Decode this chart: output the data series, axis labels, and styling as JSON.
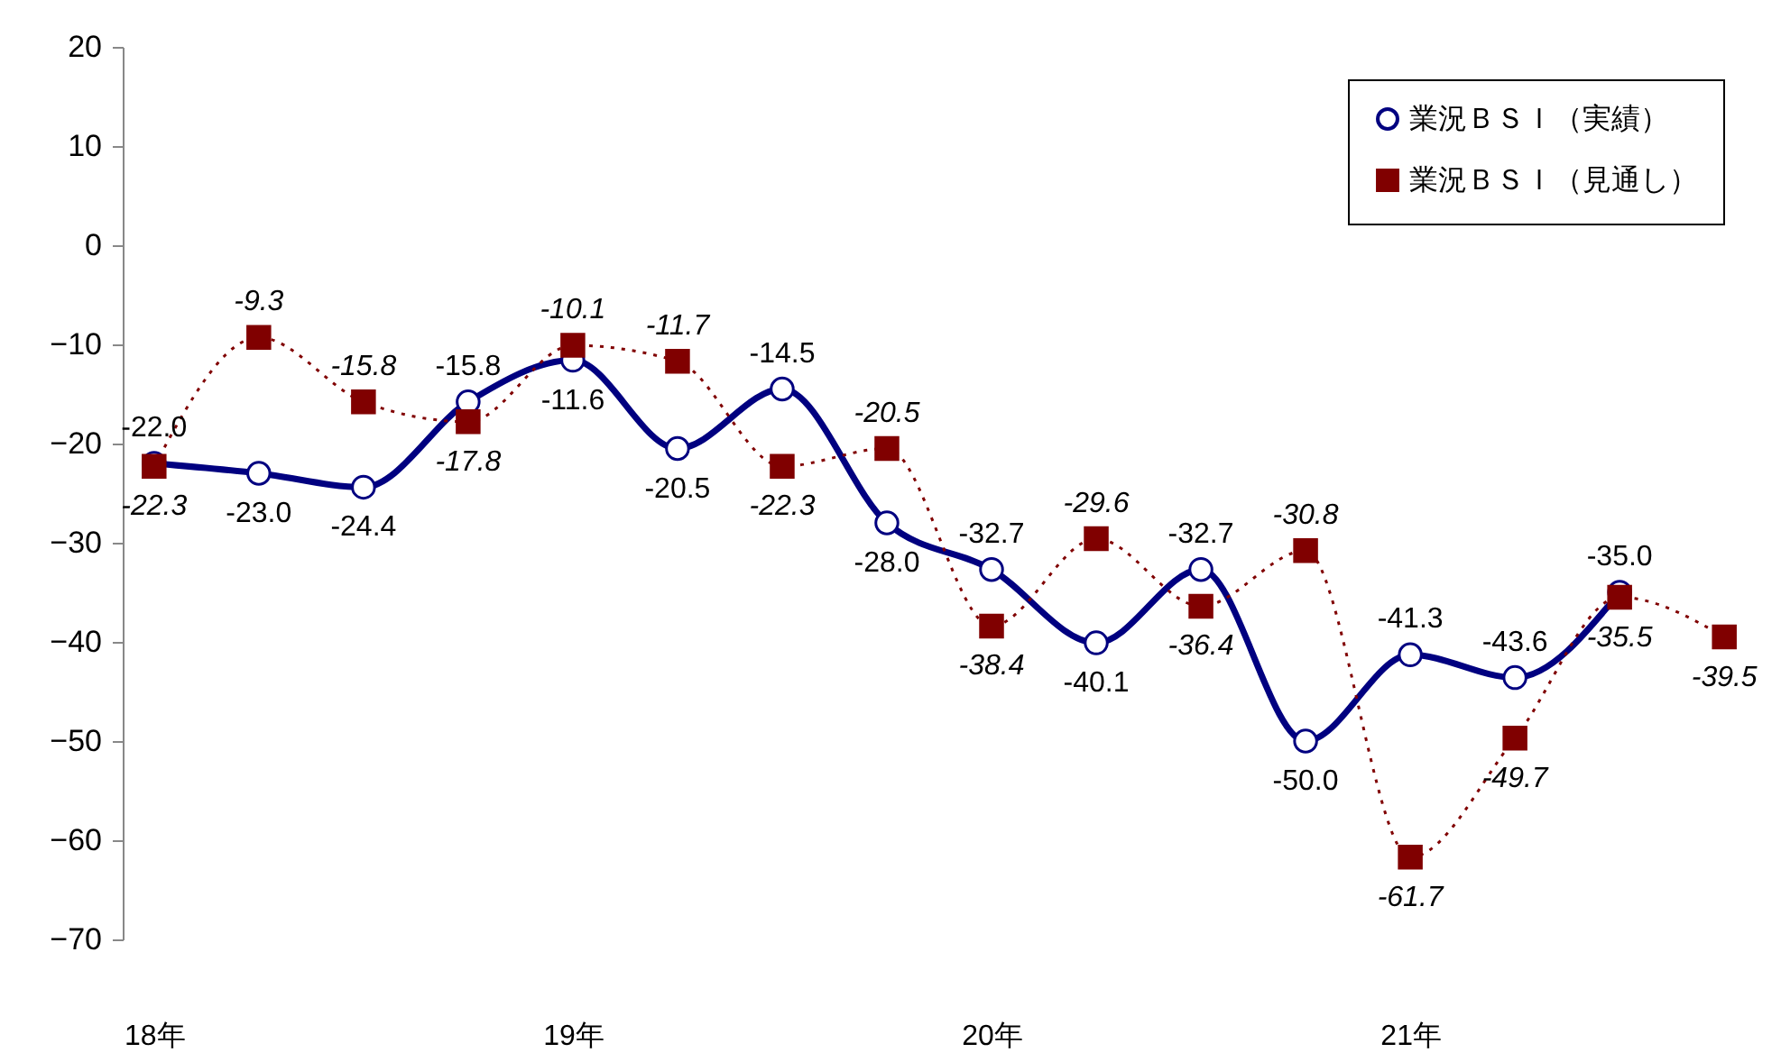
{
  "chart_data": {
    "type": "line",
    "categories": [
      "18年",
      null,
      null,
      null,
      "19年",
      null,
      null,
      null,
      "20年",
      null,
      null,
      null,
      "21年",
      null,
      null,
      null
    ],
    "series": [
      {
        "name": "業況ＢＳＩ（実績）",
        "color": "#000080",
        "marker": "circle",
        "line_style": "solid",
        "values": [
          -22.0,
          -23.0,
          -24.4,
          -15.8,
          -11.6,
          -20.5,
          -14.5,
          -28.0,
          -32.7,
          -40.1,
          -32.7,
          -50.0,
          -41.3,
          -43.6,
          -35.0,
          null
        ],
        "value_labels": [
          "-22.0",
          "-23.0",
          "-24.4",
          "-15.8",
          "-11.6",
          "-20.5",
          "-14.5",
          "-28.0",
          "-32.7",
          "-40.1",
          "-32.7",
          "-50.0",
          "-41.3",
          "-43.6",
          "-35.0",
          null
        ]
      },
      {
        "name": "業況ＢＳＩ（見通し）",
        "color": "#800000",
        "marker": "square",
        "line_style": "dotted",
        "values": [
          -22.3,
          -9.3,
          -15.8,
          -17.8,
          -10.1,
          -11.7,
          -22.3,
          -20.5,
          -38.4,
          -29.6,
          -36.4,
          -30.8,
          -61.7,
          -49.7,
          -35.5,
          -39.5
        ],
        "value_labels": [
          "-22.3",
          "-9.3",
          "-15.8",
          "-17.8",
          "-10.1",
          "-11.7",
          "-22.3",
          "-20.5",
          "-38.4",
          "-29.6",
          "-36.4",
          "-30.8",
          "-61.7",
          "-49.7",
          "-35.5",
          "-39.5"
        ]
      }
    ],
    "ylim": [
      -70,
      20
    ],
    "yticks": [
      -70,
      -60,
      -50,
      -40,
      -30,
      -20,
      -10,
      0,
      10,
      20
    ],
    "grid": false,
    "legend": "top right"
  }
}
